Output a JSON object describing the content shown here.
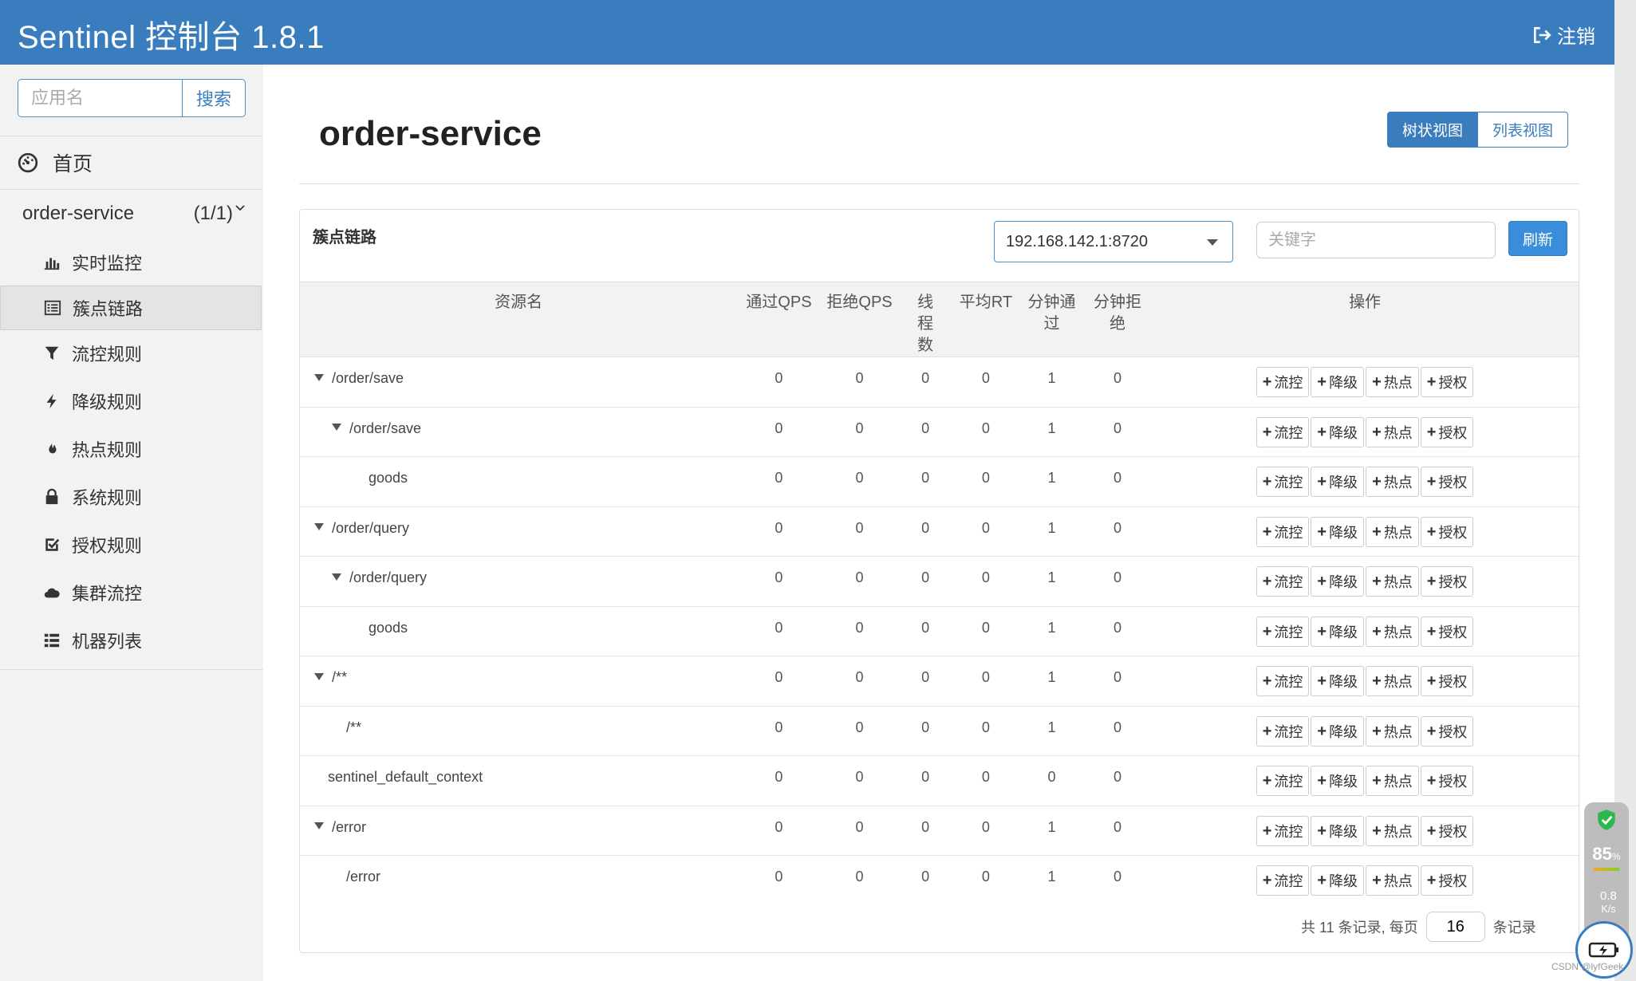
{
  "header": {
    "title": "Sentinel 控制台 1.8.1",
    "logout_label": "注销"
  },
  "sidebar": {
    "search_placeholder": "应用名",
    "search_button": "搜索",
    "home_label": "首页",
    "app_name": "order-service",
    "app_count": "(1/1)",
    "items": [
      {
        "label": "实时监控",
        "icon": "bar-chart-icon"
      },
      {
        "label": "簇点链路",
        "icon": "list-alt-icon",
        "active": true
      },
      {
        "label": "流控规则",
        "icon": "filter-icon"
      },
      {
        "label": "降级规则",
        "icon": "flash-icon"
      },
      {
        "label": "热点规则",
        "icon": "fire-icon"
      },
      {
        "label": "系统规则",
        "icon": "lock-icon"
      },
      {
        "label": "授权规则",
        "icon": "check-icon"
      },
      {
        "label": "集群流控",
        "icon": "cloud-icon"
      },
      {
        "label": "机器列表",
        "icon": "th-list-icon"
      }
    ]
  },
  "main": {
    "page_title": "order-service",
    "view_tree": "树状视图",
    "view_list": "列表视图",
    "panel_title": "簇点链路",
    "machine": "192.168.142.1:8720",
    "keyword_placeholder": "关键字",
    "refresh_label": "刷新",
    "columns": [
      "资源名",
      "通过QPS",
      "拒绝QPS",
      "线程数",
      "平均RT",
      "分钟通过",
      "分钟拒绝",
      "操作"
    ],
    "actions": [
      "流控",
      "降级",
      "热点",
      "授权"
    ],
    "rows": [
      {
        "name": "/order/save",
        "level": 0,
        "expand": true,
        "pass_qps": "0",
        "block_qps": "0",
        "threads": "0",
        "avg_rt": "0",
        "min_pass": "1",
        "min_block": "0"
      },
      {
        "name": "/order/save",
        "level": 1,
        "expand": true,
        "pass_qps": "0",
        "block_qps": "0",
        "threads": "0",
        "avg_rt": "0",
        "min_pass": "1",
        "min_block": "0"
      },
      {
        "name": "goods",
        "level": 2,
        "expand": false,
        "pass_qps": "0",
        "block_qps": "0",
        "threads": "0",
        "avg_rt": "0",
        "min_pass": "1",
        "min_block": "0"
      },
      {
        "name": "/order/query",
        "level": 0,
        "expand": true,
        "pass_qps": "0",
        "block_qps": "0",
        "threads": "0",
        "avg_rt": "0",
        "min_pass": "1",
        "min_block": "0"
      },
      {
        "name": "/order/query",
        "level": 1,
        "expand": true,
        "pass_qps": "0",
        "block_qps": "0",
        "threads": "0",
        "avg_rt": "0",
        "min_pass": "1",
        "min_block": "0"
      },
      {
        "name": "goods",
        "level": 2,
        "expand": false,
        "pass_qps": "0",
        "block_qps": "0",
        "threads": "0",
        "avg_rt": "0",
        "min_pass": "1",
        "min_block": "0"
      },
      {
        "name": "/**",
        "level": 0,
        "expand": true,
        "pass_qps": "0",
        "block_qps": "0",
        "threads": "0",
        "avg_rt": "0",
        "min_pass": "1",
        "min_block": "0"
      },
      {
        "name": "/**",
        "level": 1,
        "expand": false,
        "pass_qps": "0",
        "block_qps": "0",
        "threads": "0",
        "avg_rt": "0",
        "min_pass": "1",
        "min_block": "0"
      },
      {
        "name": "sentinel_default_context",
        "level": 0,
        "expand": false,
        "pass_qps": "0",
        "block_qps": "0",
        "threads": "0",
        "avg_rt": "0",
        "min_pass": "0",
        "min_block": "0"
      },
      {
        "name": "/error",
        "level": 0,
        "expand": true,
        "pass_qps": "0",
        "block_qps": "0",
        "threads": "0",
        "avg_rt": "0",
        "min_pass": "1",
        "min_block": "0"
      },
      {
        "name": "/error",
        "level": 1,
        "expand": false,
        "pass_qps": "0",
        "block_qps": "0",
        "threads": "0",
        "avg_rt": "0",
        "min_pass": "1",
        "min_block": "0"
      }
    ],
    "pager": {
      "prefix": "共 11 条记录, 每页",
      "page_size": "16",
      "suffix": "条记录"
    }
  },
  "widget": {
    "percent": "85",
    "percent_unit": "%",
    "speed": "0.8",
    "speed_unit": "K/s"
  },
  "watermark": "CSDN @lyfGeek",
  "colors": {
    "header": "#3a7dbf",
    "primary": "#3a8ddb"
  }
}
